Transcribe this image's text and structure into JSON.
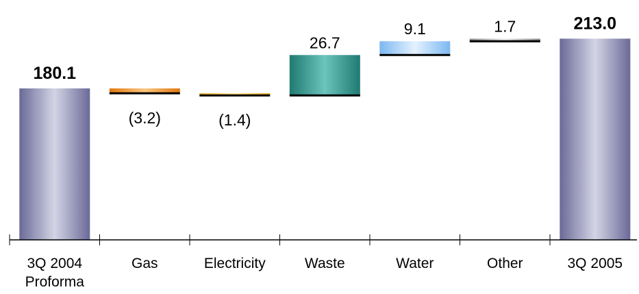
{
  "chart_data": {
    "type": "waterfall",
    "title": "",
    "xlabel": "",
    "ylabel": "",
    "categories": [
      "3Q 2004\nProforma",
      "Gas",
      "Electricity",
      "Waste",
      "Water",
      "Other",
      "3Q 2005"
    ],
    "bars": [
      {
        "category": "3Q 2004\nProforma",
        "kind": "total",
        "value": 180.1,
        "label": "180.1",
        "color": "#8a8ab8"
      },
      {
        "category": "Gas",
        "kind": "delta",
        "value": -3.2,
        "label": "(3.2)",
        "color": "#f0a030"
      },
      {
        "category": "Electricity",
        "kind": "delta",
        "value": -1.4,
        "label": "(1.4)",
        "color": "#f2c030"
      },
      {
        "category": "Waste",
        "kind": "delta",
        "value": 26.7,
        "label": "26.7",
        "color": "#3a9e96"
      },
      {
        "category": "Water",
        "kind": "delta",
        "value": 9.1,
        "label": "9.1",
        "color": "#a8d0f4"
      },
      {
        "category": "Other",
        "kind": "delta",
        "value": 1.7,
        "label": "1.7",
        "color": "#c0c0c0"
      },
      {
        "category": "3Q 2005",
        "kind": "total",
        "value": 213.0,
        "label": "213.0",
        "color": "#8a8ab8"
      }
    ],
    "ylim": [
      80,
      215
    ],
    "grid": false,
    "legend": "none"
  }
}
